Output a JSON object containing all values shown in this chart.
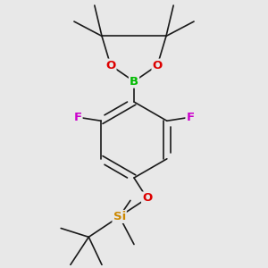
{
  "background_color": "#e8e8e8",
  "bond_color": "#1a1a1a",
  "bond_width": 1.2,
  "dbo": 0.045,
  "atom_labels": {
    "B": {
      "color": "#00bb00",
      "fontsize": 9.5,
      "fontweight": "bold"
    },
    "O": {
      "color": "#dd0000",
      "fontsize": 9.5,
      "fontweight": "bold"
    },
    "F": {
      "color": "#cc00cc",
      "fontsize": 9.5,
      "fontweight": "bold"
    },
    "Si": {
      "color": "#cc8800",
      "fontsize": 9.5,
      "fontweight": "bold"
    }
  },
  "figsize": [
    3.0,
    3.0
  ],
  "dpi": 100,
  "xlim": [
    -1.5,
    1.5
  ],
  "ylim": [
    -1.9,
    1.7
  ]
}
